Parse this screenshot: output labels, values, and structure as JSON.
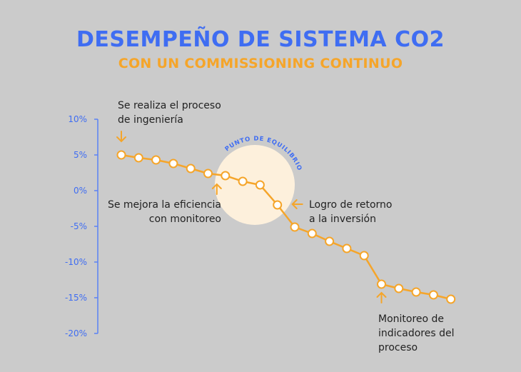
{
  "chart_data": {
    "type": "line",
    "title": "DESEMPEÑO DE SISTEMA CO2",
    "subtitle": "CON UN COMMISSIONING CONTINUO",
    "xlabel": "",
    "ylabel": "",
    "ylim": [
      -20,
      10
    ],
    "yticks": [
      "10%",
      "5%",
      "0%",
      "-5%",
      "-10%",
      "-15%",
      "-20%"
    ],
    "ytick_values": [
      10,
      5,
      0,
      -5,
      -10,
      -15,
      -20
    ],
    "grid": false,
    "x": [
      1,
      2,
      3,
      4,
      5,
      6,
      7,
      8,
      9,
      10,
      11,
      12,
      13,
      14,
      15,
      16,
      17,
      18,
      19,
      20
    ],
    "values": [
      5.0,
      4.6,
      4.3,
      3.8,
      3.1,
      2.4,
      2.1,
      1.3,
      0.8,
      -2.0,
      -5.1,
      -6.0,
      -7.1,
      -8.1,
      -9.1,
      -13.1,
      -13.7,
      -14.2,
      -14.6,
      -15.2
    ],
    "colors": {
      "line": "#f5a52a",
      "axis": "#3f6df2",
      "title": "#3f6df2",
      "subtitle": "#f5a52a",
      "highlight": "#fdf0dc"
    },
    "highlight_label": "PUNTO DE EQUILIBRIO",
    "annotations": [
      {
        "lines": [
          "Se realiza el proceso",
          "de ingeniería"
        ],
        "point": 1,
        "arrow": "down"
      },
      {
        "lines": [
          "Se mejora la eficiencia",
          "con monitoreo"
        ],
        "point": 7,
        "arrow": "up"
      },
      {
        "lines": [
          "Logro de retorno",
          "a la inversión"
        ],
        "point": 10,
        "arrow": "left"
      },
      {
        "lines": [
          "Monitoreo de",
          "indicadores del",
          "proceso"
        ],
        "point": 16,
        "arrow": "up"
      }
    ]
  }
}
